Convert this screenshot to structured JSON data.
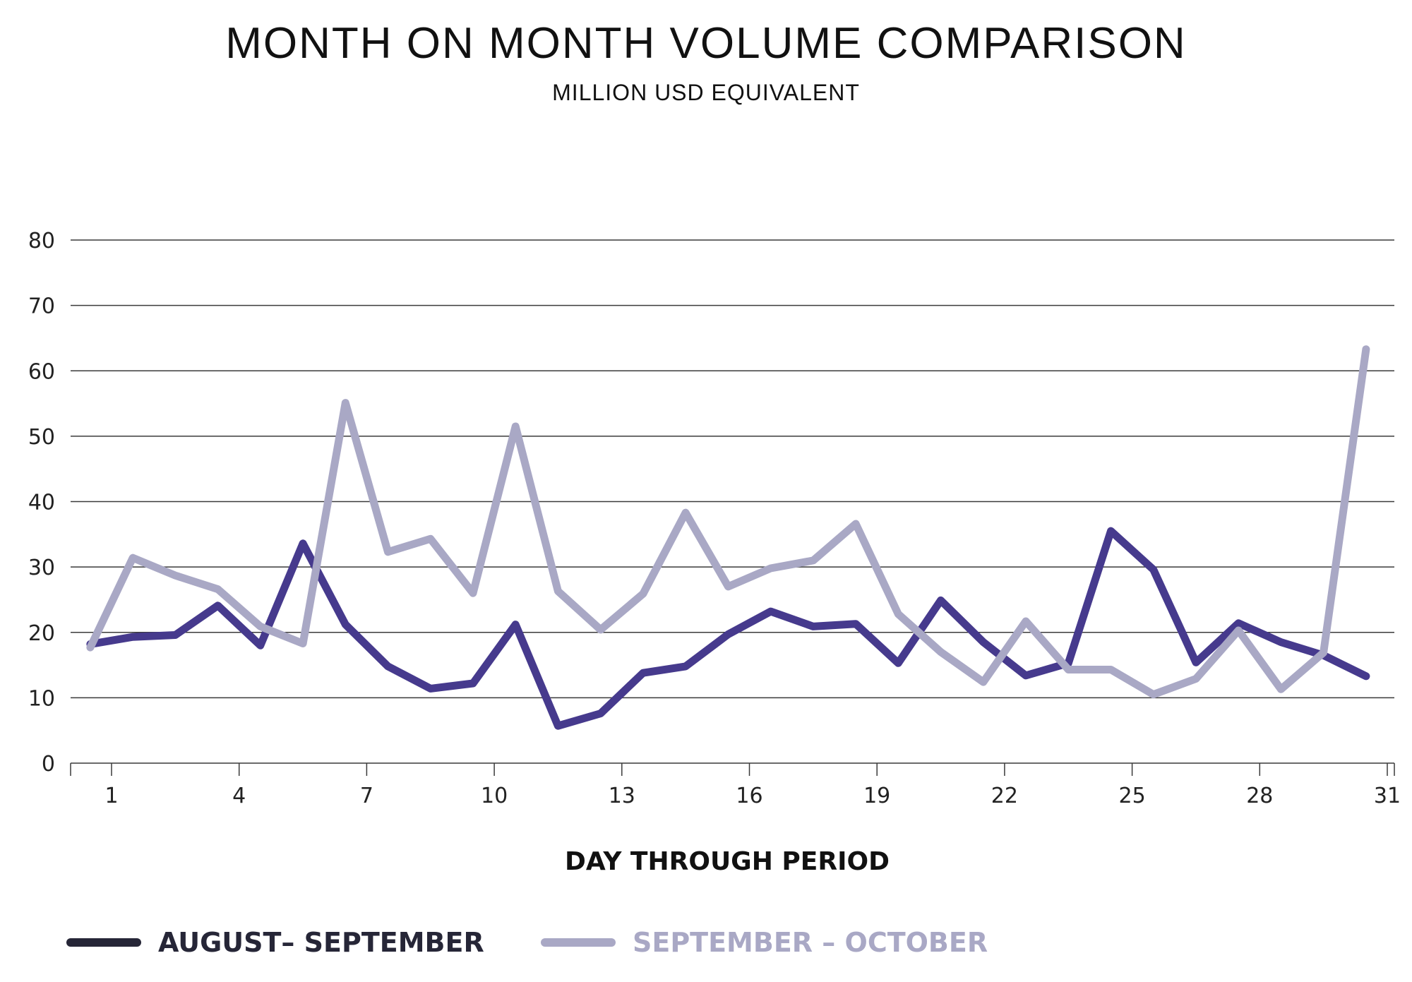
{
  "chart_data": {
    "type": "line",
    "title": "MONTH ON MONTH VOLUME COMPARISON",
    "subtitle": "MILLION USD EQUIVALENT",
    "xlabel": "DAY THROUGH PERIOD",
    "ylabel": "",
    "ylim": [
      0,
      80
    ],
    "yticks": [
      0,
      10,
      20,
      30,
      40,
      50,
      60,
      70,
      80
    ],
    "xlim": [
      0.5,
      31
    ],
    "xticks": [
      1,
      4,
      7,
      10,
      13,
      16,
      19,
      22,
      25,
      28,
      31
    ],
    "x": [
      0.5,
      1.5,
      2.5,
      3.5,
      4.5,
      5.5,
      6.5,
      7.5,
      8.5,
      9.5,
      10.5,
      11.5,
      12.5,
      13.5,
      14.5,
      15.5,
      16.5,
      17.5,
      18.5,
      19.5,
      20.5,
      21.5,
      22.5,
      23.5,
      24.5,
      25.5,
      26.5,
      27.5,
      28.5,
      29.5,
      30.5
    ],
    "grid": "horizontal",
    "legend_position": "bottom-left",
    "series": [
      {
        "name": "AUGUST– SEPTEMBER",
        "color": "#463a8d",
        "legend_color": "#262637",
        "values": [
          18.2,
          19.3,
          19.6,
          24.1,
          18.0,
          33.6,
          21.2,
          14.8,
          11.4,
          12.2,
          21.2,
          5.7,
          7.6,
          13.8,
          14.8,
          19.7,
          23.2,
          20.9,
          21.3,
          15.3,
          24.9,
          18.5,
          13.4,
          15.3,
          35.5,
          29.6,
          15.4,
          21.4,
          18.5,
          16.5,
          13.3
        ]
      },
      {
        "name": "SEPTEMBER – OCTOBER",
        "color": "#a9a8c5",
        "legend_color": "#a9a8c5",
        "values": [
          17.7,
          31.4,
          28.7,
          26.6,
          20.9,
          18.3,
          55.1,
          32.3,
          34.3,
          26.0,
          51.5,
          26.3,
          20.4,
          25.9,
          38.3,
          27.0,
          29.8,
          31.0,
          36.6,
          22.8,
          17.0,
          12.4,
          21.7,
          14.3,
          14.3,
          10.5,
          12.9,
          20.3,
          11.3,
          16.9,
          63.3
        ]
      }
    ]
  }
}
